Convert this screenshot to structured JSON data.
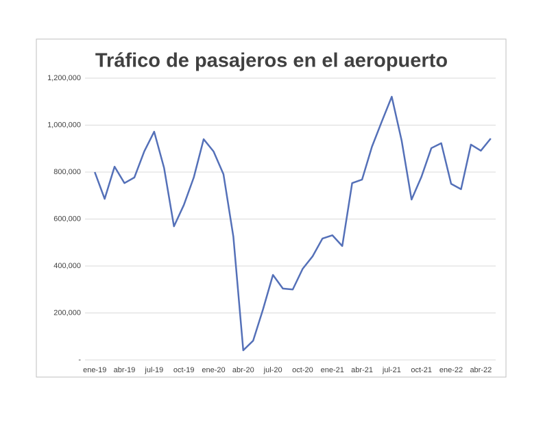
{
  "chart_data": {
    "type": "line",
    "title": "Tráfico de pasajeros en el aeropuerto",
    "categories": [
      "ene-19",
      null,
      null,
      "abr-19",
      null,
      null,
      "jul-19",
      null,
      null,
      "oct-19",
      null,
      null,
      "ene-20",
      null,
      null,
      "abr-20",
      null,
      null,
      "jul-20",
      null,
      null,
      "oct-20",
      null,
      null,
      "ene-21",
      null,
      null,
      "abr-21",
      null,
      null,
      "jul-21",
      null,
      null,
      "oct-21",
      null,
      null,
      "ene-22",
      null,
      null,
      "abr-22",
      null
    ],
    "values": [
      800000,
      686000,
      823000,
      753000,
      777000,
      888000,
      972000,
      818000,
      569000,
      660000,
      777000,
      940000,
      888000,
      791000,
      525000,
      41000,
      82000,
      216000,
      362000,
      304000,
      300000,
      388000,
      441000,
      517000,
      531000,
      485000,
      753000,
      768000,
      908000,
      1016000,
      1121000,
      934000,
      683000,
      780000,
      902000,
      923000,
      750000,
      727000,
      917000,
      891000,
      943000
    ],
    "color": "#5470b8",
    "ylim": [
      0,
      1200000
    ],
    "yticks": [
      {
        "value": 0,
        "label": "-"
      },
      {
        "value": 200000,
        "label": "200,000"
      },
      {
        "value": 400000,
        "label": "400,000"
      },
      {
        "value": 600000,
        "label": "600,000"
      },
      {
        "value": 800000,
        "label": "800,000"
      },
      {
        "value": 1000000,
        "label": "1,000,000"
      },
      {
        "value": 1200000,
        "label": "1,200,000"
      }
    ],
    "grid": true
  }
}
